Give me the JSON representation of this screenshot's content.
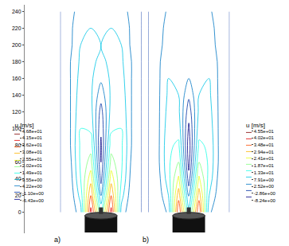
{
  "chart_data": [
    {
      "type": "contour",
      "label": "a)",
      "tick_labels": "y",
      "xlim": [
        -40,
        40
      ],
      "ylim": [
        -25,
        248
      ],
      "yticks": [
        0,
        20,
        40,
        60,
        80,
        100,
        120,
        140,
        160,
        180,
        200,
        220,
        240
      ],
      "x": [
        -40,
        -30,
        -20,
        -10,
        0,
        10,
        20,
        30,
        40
      ],
      "y": [
        0,
        20,
        40,
        60,
        80,
        100,
        120,
        140,
        160,
        180,
        200,
        220,
        240
      ],
      "z": [
        [
          0,
          1,
          8,
          42,
          15,
          42,
          8,
          1,
          0
        ],
        [
          0,
          2,
          12,
          35,
          5,
          35,
          12,
          2,
          0
        ],
        [
          0,
          3,
          15,
          28,
          -2,
          28,
          15,
          3,
          0
        ],
        [
          0,
          4,
          16,
          22,
          -5,
          22,
          16,
          4,
          0
        ],
        [
          0,
          5,
          16,
          18,
          -6,
          18,
          16,
          5,
          0
        ],
        [
          0,
          5,
          15,
          14,
          -4,
          14,
          15,
          5,
          0
        ],
        [
          0,
          5,
          14,
          12,
          -2,
          12,
          14,
          5,
          0
        ],
        [
          0,
          5,
          13,
          11,
          2,
          11,
          13,
          5,
          0
        ],
        [
          0,
          5,
          12,
          11,
          6,
          11,
          12,
          5,
          0
        ],
        [
          0,
          5,
          11,
          11,
          9,
          11,
          11,
          5,
          0
        ],
        [
          0,
          4,
          10,
          11,
          10,
          11,
          10,
          4,
          0
        ],
        [
          0,
          4,
          9,
          10,
          10,
          10,
          9,
          4,
          0
        ],
        [
          0,
          3,
          8,
          9,
          9,
          9,
          8,
          3,
          0
        ]
      ],
      "colorbar": {
        "title": "u [m/s]",
        "range": [
          -6.43,
          46.8
        ],
        "ticks": [
          {
            "value": 46.8,
            "label": "4.68e+01"
          },
          {
            "value": 41.5,
            "label": "4.15e+01"
          },
          {
            "value": 36.2,
            "label": "3.62e+01"
          },
          {
            "value": 30.8,
            "label": "3.08e+01"
          },
          {
            "value": 25.5,
            "label": "2.55e+01"
          },
          {
            "value": 20.2,
            "label": "2.02e+01"
          },
          {
            "value": 14.9,
            "label": "1.49e+01"
          },
          {
            "value": 9.55,
            "label": "9.55e+00"
          },
          {
            "value": 4.22,
            "label": "4.22e+00"
          },
          {
            "value": -1.1,
            "label": "-1.10e+00"
          },
          {
            "value": -6.43,
            "label": "-6.43e+00"
          }
        ]
      }
    },
    {
      "type": "contour",
      "label": "b)",
      "tick_labels": false,
      "xlim": [
        -40,
        40
      ],
      "ylim": [
        -25,
        248
      ],
      "x": [
        -40,
        -30,
        -20,
        -10,
        0,
        10,
        20,
        30,
        40
      ],
      "y": [
        0,
        20,
        40,
        60,
        80,
        100,
        120,
        140,
        160,
        180,
        200,
        220,
        240
      ],
      "z": [
        [
          0,
          1,
          6,
          40,
          12,
          40,
          6,
          1,
          0
        ],
        [
          0,
          2,
          10,
          33,
          4,
          33,
          10,
          2,
          0
        ],
        [
          0,
          3,
          13,
          26,
          -3,
          26,
          13,
          3,
          0
        ],
        [
          0,
          4,
          14,
          20,
          -7,
          20,
          14,
          4,
          0
        ],
        [
          0,
          4,
          14,
          16,
          -8,
          16,
          14,
          4,
          0
        ],
        [
          0,
          4,
          13,
          13,
          -6,
          13,
          13,
          4,
          0
        ],
        [
          0,
          4,
          12,
          11,
          -3,
          11,
          12,
          4,
          0
        ],
        [
          0,
          4,
          11,
          10,
          1,
          10,
          11,
          4,
          0
        ],
        [
          0,
          4,
          10,
          10,
          5,
          10,
          10,
          4,
          0
        ],
        [
          0,
          4,
          9,
          10,
          8,
          10,
          9,
          4,
          0
        ],
        [
          0,
          3,
          8,
          9,
          9,
          9,
          8,
          3,
          0
        ],
        [
          0,
          3,
          7,
          8,
          8,
          8,
          7,
          3,
          0
        ],
        [
          0,
          2,
          6,
          7,
          7,
          7,
          6,
          2,
          0
        ]
      ],
      "colorbar": {
        "title": "u [m/s]",
        "range": [
          -8.24,
          45.5
        ],
        "ticks": [
          {
            "value": 45.5,
            "label": "4.55e+01"
          },
          {
            "value": 40.2,
            "label": "4.02e+01"
          },
          {
            "value": 34.8,
            "label": "3.48e+01"
          },
          {
            "value": 29.4,
            "label": "2.94e+01"
          },
          {
            "value": 24.1,
            "label": "2.41e+01"
          },
          {
            "value": 18.7,
            "label": "1.87e+01"
          },
          {
            "value": 13.3,
            "label": "1.33e+01"
          },
          {
            "value": 7.91,
            "label": "7.91e+00"
          },
          {
            "value": 2.52,
            "label": "2.52e+00"
          },
          {
            "value": -2.86,
            "label": "-2.86e+00"
          },
          {
            "value": -8.24,
            "label": "-8.24e+00"
          }
        ]
      }
    }
  ]
}
